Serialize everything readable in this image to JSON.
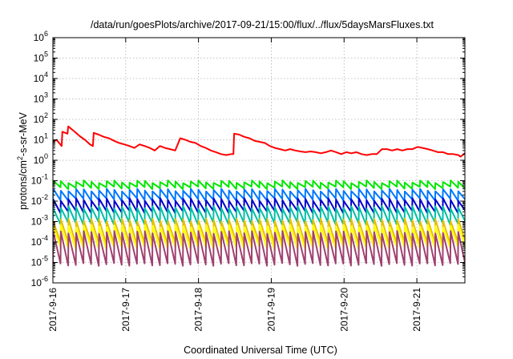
{
  "chart_data": {
    "type": "line",
    "title": "/data/run/goesPlots/archive/2017-09-21/15:00/flux/../flux/5daysMarsFluxes.txt",
    "xlabel": "Coordinated Universal Time (UTC)",
    "ylabel_parts": [
      "protons/cm",
      "2",
      "-s-sr-MeV"
    ],
    "yscale": "log",
    "ylim": [
      1e-06,
      1000000.0
    ],
    "y_ticks": [
      {
        "base": "10",
        "exp": "-6"
      },
      {
        "base": "10",
        "exp": "-5"
      },
      {
        "base": "10",
        "exp": "-4"
      },
      {
        "base": "10",
        "exp": "-3"
      },
      {
        "base": "10",
        "exp": "-2"
      },
      {
        "base": "10",
        "exp": "-1"
      },
      {
        "base": "10",
        "exp": "0"
      },
      {
        "base": "10",
        "exp": "1"
      },
      {
        "base": "10",
        "exp": "2"
      },
      {
        "base": "10",
        "exp": "3"
      },
      {
        "base": "10",
        "exp": "4"
      },
      {
        "base": "10",
        "exp": "5"
      },
      {
        "base": "10",
        "exp": "6"
      }
    ],
    "xlim_days": [
      0,
      5.66
    ],
    "x_ticks": [
      "2017-9-16",
      "2017-9-17",
      "2017-9-18",
      "2017-9-19",
      "2017-9-20",
      "2017-9-21"
    ],
    "grid": true,
    "series": [
      {
        "color": "#ff0000",
        "x": [
          0.0,
          0.05,
          0.12,
          0.13,
          0.2,
          0.21,
          0.23,
          0.3,
          0.37,
          0.44,
          0.51,
          0.55,
          0.56,
          0.63,
          0.7,
          0.77,
          0.84,
          0.91,
          0.98,
          1.05,
          1.12,
          1.19,
          1.26,
          1.33,
          1.4,
          1.47,
          1.54,
          1.61,
          1.68,
          1.75,
          1.82,
          1.89,
          1.96,
          2.03,
          2.1,
          2.17,
          2.24,
          2.31,
          2.38,
          2.45,
          2.48,
          2.49,
          2.56,
          2.63,
          2.7,
          2.77,
          2.84,
          2.91,
          2.98,
          3.05,
          3.12,
          3.19,
          3.26,
          3.33,
          3.4,
          3.47,
          3.54,
          3.61,
          3.68,
          3.75,
          3.82,
          3.89,
          3.96,
          4.03,
          4.1,
          4.17,
          4.24,
          4.31,
          4.38,
          4.45,
          4.52,
          4.59,
          4.66,
          4.73,
          4.8,
          4.87,
          4.94,
          5.01,
          5.08,
          5.15,
          5.22,
          5.29,
          5.36,
          5.43,
          5.5,
          5.57,
          5.6,
          5.66
        ],
        "y": [
          8,
          10,
          5,
          25,
          20,
          45,
          40,
          25,
          15,
          10,
          6,
          5,
          22,
          18,
          14,
          12,
          9,
          7,
          6,
          5,
          4,
          6,
          5,
          4,
          3,
          5,
          4,
          3.5,
          3,
          12,
          10,
          8,
          7,
          5,
          4,
          3,
          2.5,
          2,
          1.8,
          2,
          2,
          20,
          18,
          14,
          12,
          9,
          8,
          7,
          5,
          4,
          3.5,
          3,
          3.5,
          3,
          2.7,
          2.5,
          2.7,
          2.5,
          2.2,
          2.5,
          3,
          2.5,
          2,
          2.5,
          2.2,
          2.5,
          2,
          1.8,
          2,
          2,
          3.5,
          3.5,
          3,
          3.5,
          3,
          3.5,
          3.5,
          4.5,
          4,
          3.5,
          3,
          2.5,
          2.5,
          2,
          2,
          1.8,
          1.5,
          2.2
        ]
      },
      {
        "color": "#00e600",
        "base": 0.09,
        "low": 0.045
      },
      {
        "color": "#0077ff",
        "base": 0.035,
        "low": 0.012
      },
      {
        "color": "#0000cc",
        "base": 0.012,
        "low": 0.003
      },
      {
        "color": "#00bfa5",
        "base": 0.005,
        "low": 0.0008
      },
      {
        "color": "#e6c000",
        "base": 0.0012,
        "low": 9e-05
      },
      {
        "color": "#ffff00",
        "base": 0.0006,
        "low": 5e-05
      },
      {
        "color": "#a04070",
        "base": 0.0003,
        "low": 8e-06
      }
    ]
  }
}
